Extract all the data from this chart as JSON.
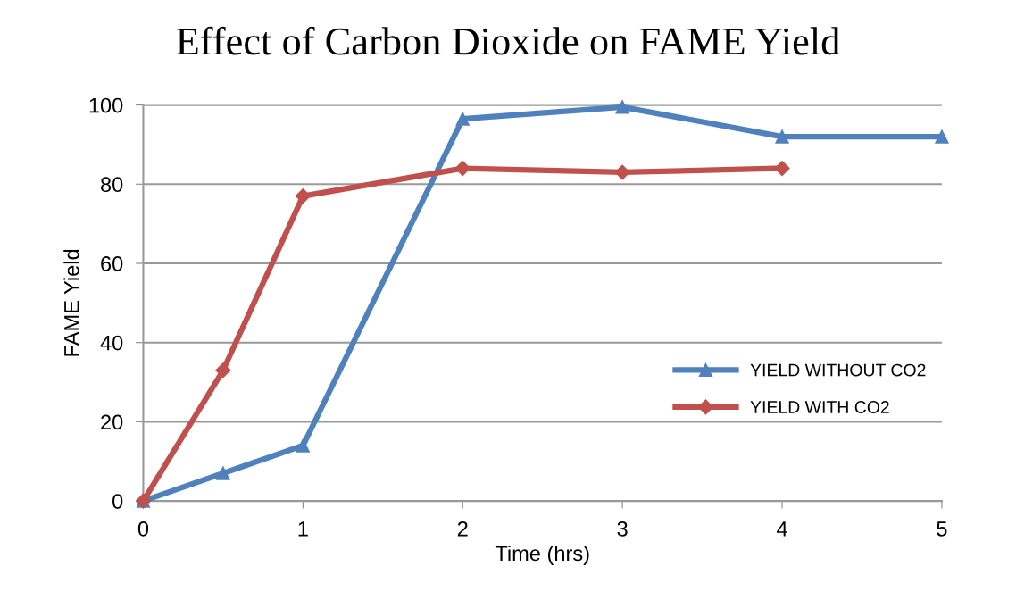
{
  "chart_data": {
    "type": "line",
    "title": "Effect of Carbon Dioxide on FAME Yield",
    "xlabel": "Time (hrs)",
    "ylabel": "FAME Yield",
    "xlim": [
      0,
      5
    ],
    "xticks": [
      0,
      1,
      2,
      3,
      4,
      5
    ],
    "ylim": [
      0,
      100
    ],
    "yticks": [
      0,
      20,
      40,
      60,
      80,
      100
    ],
    "grid": "y",
    "legend": "right",
    "line_style": "solid",
    "series": [
      {
        "name": "YIELD WITHOUT CO2",
        "color": "#4f81bd",
        "marker": "triangle",
        "x": [
          0,
          0.5,
          1,
          2,
          3,
          4,
          5
        ],
        "values": [
          0,
          7,
          14,
          96.5,
          99.5,
          92,
          92
        ]
      },
      {
        "name": "YIELD WITH CO2",
        "color": "#c0504d",
        "marker": "diamond",
        "x": [
          0,
          0.5,
          1,
          2,
          3,
          4
        ],
        "values": [
          0,
          33,
          77,
          84,
          83,
          84
        ]
      }
    ]
  }
}
